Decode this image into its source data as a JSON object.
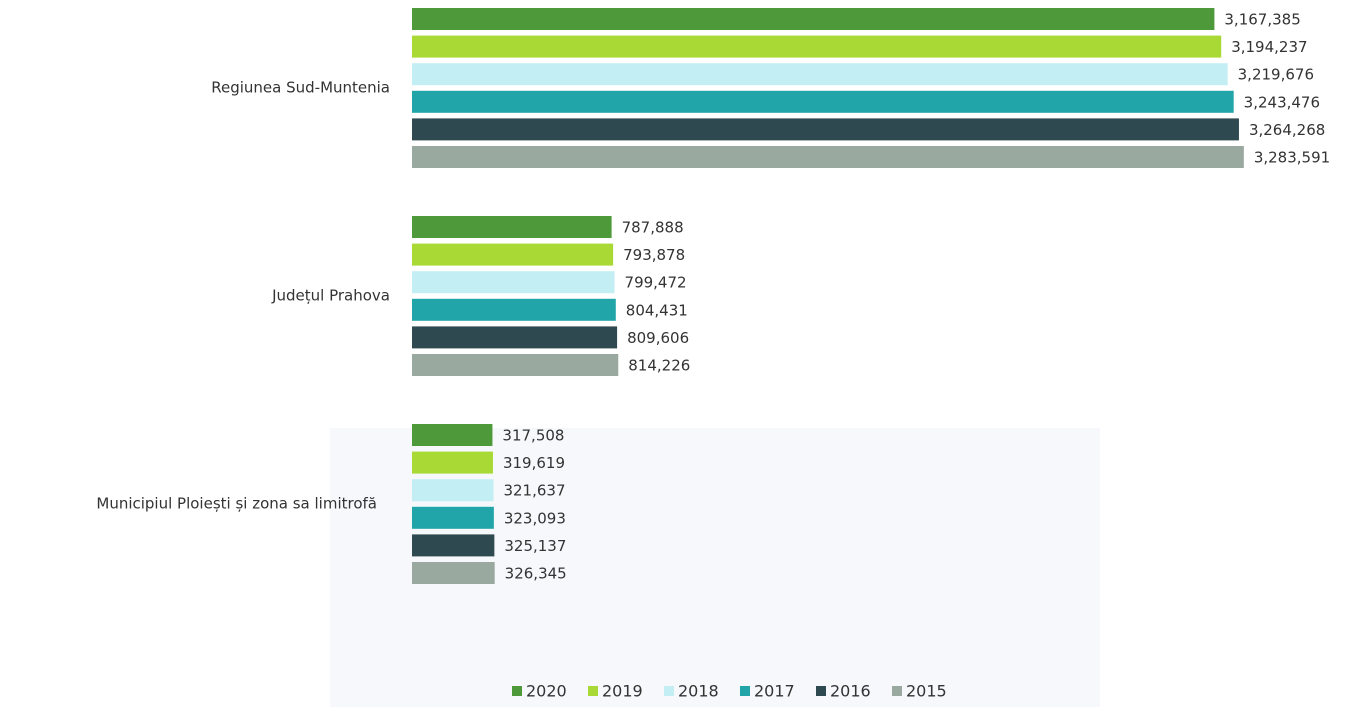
{
  "chart_data": {
    "type": "barh",
    "categories": [
      "Regiunea Sud-Muntenia",
      "Județul Prahova",
      "Municipiul Ploiești și zona sa limitrofă"
    ],
    "series": [
      {
        "name": "2020",
        "color": "#4e9a3a",
        "values": [
          3167385,
          787888,
          317508
        ],
        "value_labels": [
          "3,167,385",
          "787,888",
          "317,508"
        ]
      },
      {
        "name": "2019",
        "color": "#a9d934",
        "values": [
          3194237,
          793878,
          319619
        ],
        "value_labels": [
          "3,194,237",
          "793,878",
          "319,619"
        ]
      },
      {
        "name": "2018",
        "color": "#c3eef4",
        "values": [
          3219676,
          799472,
          321637
        ],
        "value_labels": [
          "3,219,676",
          "799,472",
          "321,637"
        ]
      },
      {
        "name": "2017",
        "color": "#21a5a9",
        "values": [
          3243476,
          804431,
          323093
        ],
        "value_labels": [
          "3,243,476",
          "804,431",
          "323,093"
        ]
      },
      {
        "name": "2016",
        "color": "#2e4a50",
        "values": [
          3264268,
          809606,
          325137
        ],
        "value_labels": [
          "3,264,268",
          "809,606",
          "325,137"
        ]
      },
      {
        "name": "2015",
        "color": "#9aa99f",
        "values": [
          3283591,
          814226,
          326345
        ],
        "value_labels": [
          "3,283,591",
          "814,226",
          "326,345"
        ]
      }
    ],
    "xlim": [
      0,
      3300000
    ],
    "legend": "bottom"
  }
}
